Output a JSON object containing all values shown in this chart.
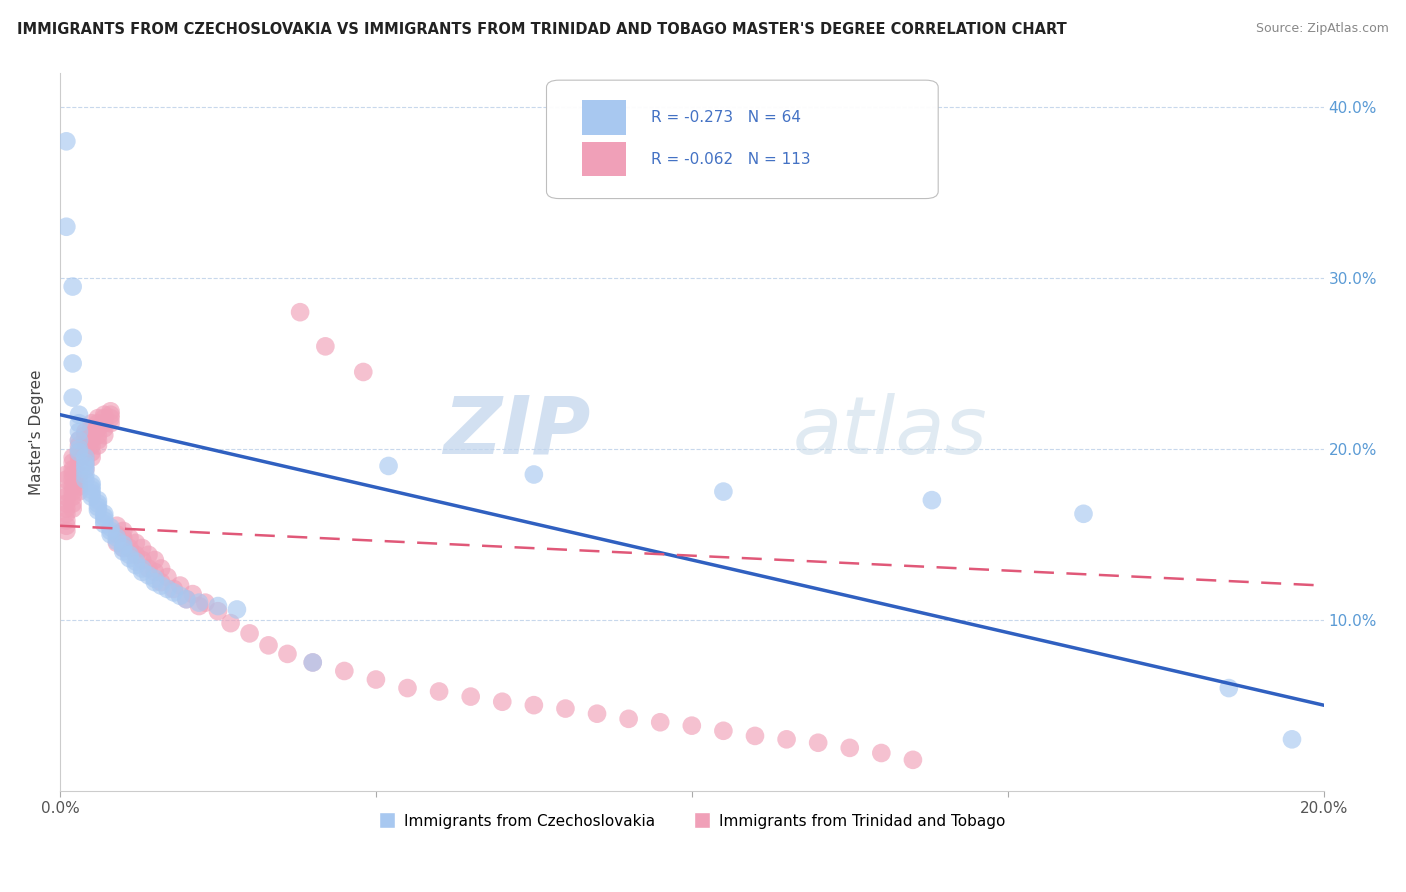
{
  "title": "IMMIGRANTS FROM CZECHOSLOVAKIA VS IMMIGRANTS FROM TRINIDAD AND TOBAGO MASTER'S DEGREE CORRELATION CHART",
  "source": "Source: ZipAtlas.com",
  "ylabel": "Master's Degree",
  "xlim": [
    0.0,
    0.2
  ],
  "ylim": [
    0.0,
    0.42
  ],
  "yticks": [
    0.0,
    0.1,
    0.2,
    0.3,
    0.4
  ],
  "color_czech": "#a8c8f0",
  "color_trinidad": "#f0a0b8",
  "line_color_czech": "#3060c0",
  "line_color_trinidad": "#e05878",
  "R_czech": -0.273,
  "N_czech": 64,
  "R_trinidad": -0.062,
  "N_trinidad": 113,
  "watermark_zip": "ZIP",
  "watermark_atlas": "atlas",
  "legend_label_czech": "Immigrants from Czechoslovakia",
  "legend_label_trinidad": "Immigrants from Trinidad and Tobago",
  "czech_x": [
    0.001,
    0.001,
    0.002,
    0.002,
    0.002,
    0.002,
    0.003,
    0.003,
    0.003,
    0.003,
    0.003,
    0.003,
    0.004,
    0.004,
    0.004,
    0.004,
    0.004,
    0.004,
    0.005,
    0.005,
    0.005,
    0.005,
    0.005,
    0.006,
    0.006,
    0.006,
    0.006,
    0.007,
    0.007,
    0.007,
    0.007,
    0.008,
    0.008,
    0.008,
    0.009,
    0.009,
    0.01,
    0.01,
    0.01,
    0.011,
    0.011,
    0.012,
    0.012,
    0.013,
    0.013,
    0.014,
    0.015,
    0.015,
    0.016,
    0.017,
    0.018,
    0.019,
    0.02,
    0.022,
    0.025,
    0.028,
    0.04,
    0.052,
    0.075,
    0.105,
    0.138,
    0.162,
    0.185,
    0.195
  ],
  "czech_y": [
    0.38,
    0.33,
    0.295,
    0.265,
    0.25,
    0.23,
    0.22,
    0.215,
    0.21,
    0.205,
    0.2,
    0.198,
    0.195,
    0.192,
    0.19,
    0.188,
    0.185,
    0.182,
    0.18,
    0.178,
    0.176,
    0.174,
    0.172,
    0.17,
    0.168,
    0.166,
    0.164,
    0.162,
    0.16,
    0.158,
    0.156,
    0.154,
    0.152,
    0.15,
    0.148,
    0.146,
    0.144,
    0.142,
    0.14,
    0.138,
    0.136,
    0.134,
    0.132,
    0.13,
    0.128,
    0.126,
    0.124,
    0.122,
    0.12,
    0.118,
    0.116,
    0.114,
    0.112,
    0.11,
    0.108,
    0.106,
    0.075,
    0.19,
    0.185,
    0.175,
    0.17,
    0.162,
    0.06,
    0.03
  ],
  "trinidad_x": [
    0.001,
    0.001,
    0.001,
    0.001,
    0.001,
    0.001,
    0.001,
    0.001,
    0.001,
    0.001,
    0.002,
    0.002,
    0.002,
    0.002,
    0.002,
    0.002,
    0.002,
    0.002,
    0.002,
    0.002,
    0.003,
    0.003,
    0.003,
    0.003,
    0.003,
    0.003,
    0.003,
    0.003,
    0.003,
    0.003,
    0.004,
    0.004,
    0.004,
    0.004,
    0.004,
    0.004,
    0.004,
    0.004,
    0.005,
    0.005,
    0.005,
    0.005,
    0.005,
    0.005,
    0.005,
    0.006,
    0.006,
    0.006,
    0.006,
    0.006,
    0.006,
    0.007,
    0.007,
    0.007,
    0.007,
    0.007,
    0.008,
    0.008,
    0.008,
    0.008,
    0.009,
    0.009,
    0.009,
    0.01,
    0.01,
    0.01,
    0.011,
    0.011,
    0.012,
    0.012,
    0.013,
    0.013,
    0.014,
    0.014,
    0.015,
    0.015,
    0.016,
    0.016,
    0.017,
    0.018,
    0.019,
    0.02,
    0.021,
    0.022,
    0.023,
    0.025,
    0.027,
    0.03,
    0.033,
    0.036,
    0.04,
    0.045,
    0.05,
    0.055,
    0.06,
    0.065,
    0.07,
    0.075,
    0.08,
    0.085,
    0.09,
    0.095,
    0.1,
    0.105,
    0.11,
    0.115,
    0.12,
    0.125,
    0.13,
    0.135,
    0.038,
    0.042,
    0.048
  ],
  "trinidad_y": [
    0.185,
    0.182,
    0.175,
    0.172,
    0.168,
    0.165,
    0.162,
    0.158,
    0.155,
    0.152,
    0.195,
    0.192,
    0.188,
    0.185,
    0.182,
    0.178,
    0.175,
    0.172,
    0.168,
    0.165,
    0.205,
    0.202,
    0.198,
    0.195,
    0.192,
    0.188,
    0.185,
    0.182,
    0.178,
    0.175,
    0.21,
    0.208,
    0.205,
    0.202,
    0.198,
    0.195,
    0.192,
    0.188,
    0.215,
    0.212,
    0.208,
    0.205,
    0.202,
    0.198,
    0.195,
    0.218,
    0.215,
    0.212,
    0.208,
    0.205,
    0.202,
    0.22,
    0.218,
    0.215,
    0.212,
    0.208,
    0.222,
    0.22,
    0.218,
    0.215,
    0.155,
    0.15,
    0.145,
    0.152,
    0.148,
    0.142,
    0.148,
    0.142,
    0.145,
    0.138,
    0.142,
    0.135,
    0.138,
    0.13,
    0.135,
    0.128,
    0.13,
    0.122,
    0.125,
    0.118,
    0.12,
    0.112,
    0.115,
    0.108,
    0.11,
    0.105,
    0.098,
    0.092,
    0.085,
    0.08,
    0.075,
    0.07,
    0.065,
    0.06,
    0.058,
    0.055,
    0.052,
    0.05,
    0.048,
    0.045,
    0.042,
    0.04,
    0.038,
    0.035,
    0.032,
    0.03,
    0.028,
    0.025,
    0.022,
    0.018,
    0.28,
    0.26,
    0.245
  ]
}
